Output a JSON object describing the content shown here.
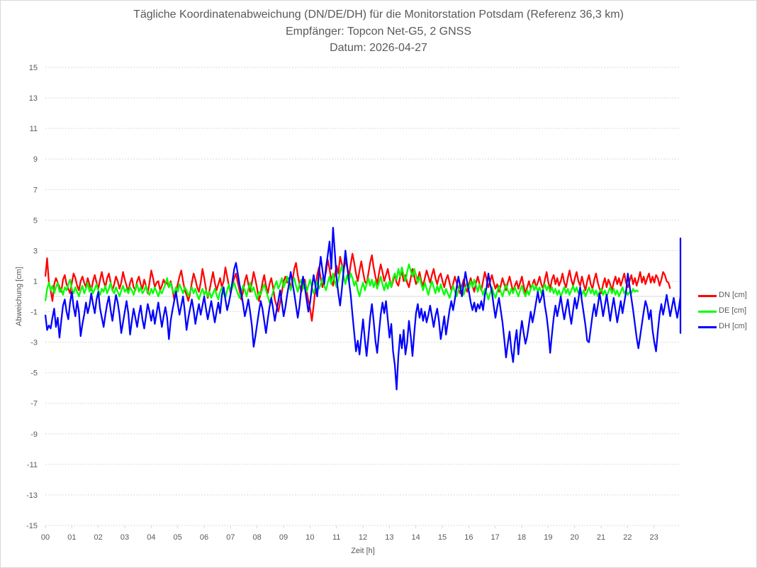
{
  "chart_data": {
    "type": "line",
    "title": "Tägliche Koordinatenabweichung (DN/DE/DH) für die Monitorstation Potsdam (Referenz 36,3 km)",
    "subtitle": "Empfänger: Topcon Net-G5, 2 GNSS",
    "date_line": "Datum: 2026-04-27",
    "xlabel": "Zeit [h]",
    "ylabel": "Abweichung [cm]",
    "xlim": [
      0,
      24
    ],
    "ylim": [
      -15,
      15
    ],
    "x_ticks": [
      "00",
      "01",
      "02",
      "03",
      "04",
      "05",
      "06",
      "07",
      "08",
      "09",
      "10",
      "11",
      "12",
      "13",
      "14",
      "15",
      "16",
      "17",
      "18",
      "19",
      "20",
      "21",
      "22",
      "23"
    ],
    "y_ticks": [
      "15",
      "13",
      "11",
      "9",
      "7",
      "5",
      "3",
      "1",
      "-1",
      "-3",
      "-5",
      "-7",
      "-9",
      "-11",
      "-13",
      "-15"
    ],
    "grid": "horizontal dotted",
    "legend_position": "right",
    "sample_interval_h": 0.0667,
    "series": [
      {
        "name": "DN [cm]",
        "color": "#ff0000",
        "values": [
          1.3,
          2.5,
          0.9,
          0.4,
          -0.3,
          0.8,
          1.2,
          0.9,
          0.6,
          0.3,
          1.1,
          1.4,
          0.8,
          0.5,
          0.2,
          0.9,
          1.5,
          1.2,
          0.7,
          0.4,
          1.0,
          1.3,
          0.9,
          0.6,
          1.2,
          0.8,
          0.4,
          1.0,
          1.4,
          0.9,
          0.5,
          1.1,
          1.6,
          1.0,
          0.6,
          1.2,
          1.5,
          0.9,
          0.4,
          0.8,
          1.3,
          1.0,
          0.5,
          0.9,
          1.6,
          1.1,
          0.7,
          0.3,
          0.9,
          1.2,
          0.6,
          0.4,
          1.0,
          1.3,
          0.8,
          0.5,
          1.1,
          0.7,
          0.2,
          0.9,
          1.7,
          1.2,
          0.6,
          0.9,
          1.0,
          0.4,
          0.7,
          1.1,
          0.8,
          0.9,
          0.6,
          1.0,
          0.5,
          -0.2,
          0.3,
          0.8,
          1.3,
          1.7,
          1.0,
          0.4,
          0.1,
          -0.3,
          0.2,
          0.9,
          1.5,
          1.1,
          0.6,
          0.3,
          0.9,
          1.8,
          1.2,
          0.5,
          -0.1,
          0.4,
          1.0,
          1.6,
          0.9,
          0.4,
          0.8,
          1.2,
          0.6,
          1.0,
          1.9,
          1.3,
          0.7,
          0.2,
          0.8,
          1.2,
          1.5,
          0.9,
          0.4,
          -0.2,
          0.3,
          1.0,
          1.4,
          0.8,
          0.3,
          0.9,
          1.6,
          1.1,
          0.5,
          -0.3,
          0.2,
          0.9,
          1.4,
          0.7,
          0.2,
          0.8,
          1.2,
          0.6,
          -0.2,
          -0.6,
          -1.0,
          -0.4,
          0.3,
          1.0,
          1.3,
          0.9,
          1.2,
          0.5,
          1.0,
          1.8,
          2.2,
          1.4,
          0.8,
          0.3,
          0.7,
          1.1,
          0.4,
          -0.3,
          -0.8,
          -1.6,
          -0.6,
          0.5,
          1.4,
          1.9,
          1.2,
          0.6,
          1.1,
          1.6,
          2.4,
          1.8,
          1.1,
          0.7,
          1.4,
          2.0,
          1.5,
          2.6,
          2.1,
          1.7,
          2.4,
          1.9,
          1.3,
          2.1,
          2.8,
          2.2,
          1.5,
          1.0,
          1.7,
          2.3,
          1.6,
          1.0,
          0.8,
          1.5,
          2.2,
          2.7,
          1.9,
          1.3,
          0.8,
          1.5,
          2.1,
          1.6,
          1.0,
          1.4,
          1.8,
          1.2,
          0.6,
          1.0,
          1.5,
          0.9,
          0.7,
          1.3,
          1.6,
          1.0,
          1.4,
          0.9,
          0.6,
          1.2,
          1.8,
          1.3,
          0.8,
          1.1,
          1.6,
          1.0,
          0.7,
          1.2,
          1.7,
          1.3,
          0.9,
          1.4,
          1.8,
          1.2,
          0.8,
          1.3,
          1.5,
          1.0,
          0.6,
          1.1,
          1.4,
          0.9,
          0.4,
          0.8,
          1.3,
          0.9,
          0.5,
          0.2,
          0.7,
          1.1,
          0.6,
          0.3,
          0.8,
          1.2,
          0.7,
          0.3,
          0.9,
          1.3,
          0.8,
          0.4,
          1.0,
          1.6,
          1.1,
          0.6,
          1.0,
          1.4,
          0.9,
          0.5,
          0.8,
          0.3,
          0.7,
          1.2,
          0.8,
          0.4,
          0.9,
          1.3,
          0.8,
          0.3,
          0.7,
          1.0,
          0.5,
          0.9,
          1.3,
          0.7,
          0.2,
          0.6,
          1.0,
          0.5,
          0.8,
          1.1,
          0.6,
          0.9,
          1.3,
          0.8,
          0.5,
          1.1,
          1.6,
          0.9,
          0.5,
          1.1,
          1.4,
          0.8,
          1.2,
          0.7,
          1.0,
          1.5,
          0.9,
          0.6,
          1.2,
          1.7,
          1.1,
          0.7,
          1.2,
          1.6,
          1.0,
          0.7,
          1.3,
          0.8,
          0.4,
          1.0,
          1.4,
          0.8,
          0.5,
          1.1,
          1.5,
          0.9,
          0.5,
          0.2,
          0.8,
          1.2,
          0.6,
          1.1,
          0.8,
          0.4,
          0.9,
          1.3,
          0.8,
          1.2,
          0.7,
          1.1,
          1.5,
          0.9,
          0.6,
          1.0,
          1.4,
          0.8,
          1.2,
          0.7,
          1.1,
          1.6,
          0.9,
          1.3,
          0.8,
          1.2,
          1.5,
          0.9,
          1.3,
          0.9,
          1.4,
          1.2,
          0.7,
          1.1,
          1.6,
          1.4,
          1.0,
          0.9,
          0.5
        ]
      },
      {
        "name": "DE [cm]",
        "color": "#00ff00",
        "values": [
          -0.3,
          0.5,
          0.9,
          0.4,
          0.7,
          0.2,
          0.6,
          0.9,
          0.3,
          0.5,
          0.1,
          0.6,
          0.4,
          0.8,
          1.1,
          0.5,
          0.2,
          0.6,
          0.3,
          0.0,
          0.4,
          0.7,
          0.2,
          0.5,
          0.9,
          0.3,
          0.6,
          0.2,
          0.5,
          0.8,
          0.4,
          0.1,
          0.5,
          0.3,
          0.7,
          0.2,
          0.5,
          0.9,
          0.4,
          0.2,
          0.6,
          0.3,
          0.0,
          0.4,
          0.7,
          0.3,
          0.5,
          0.2,
          0.6,
          0.4,
          0.1,
          0.5,
          0.8,
          0.3,
          0.6,
          0.2,
          0.4,
          0.7,
          0.3,
          0.1,
          0.5,
          0.2,
          0.6,
          0.3,
          0.0,
          0.4,
          0.2,
          0.5,
          0.8,
          1.2,
          0.6,
          0.9,
          0.4,
          0.2,
          0.6,
          0.3,
          0.8,
          0.5,
          0.2,
          0.6,
          0.4,
          0.0,
          0.3,
          0.6,
          0.2,
          0.5,
          0.1,
          -0.2,
          0.2,
          0.5,
          0.1,
          0.4,
          0.0,
          0.3,
          -0.1,
          0.2,
          0.5,
          0.1,
          -0.2,
          0.3,
          0.6,
          0.2,
          -0.1,
          0.4,
          0.8,
          0.3,
          0.6,
          0.9,
          0.5,
          0.2,
          -0.1,
          0.3,
          0.7,
          0.4,
          0.0,
          0.5,
          0.9,
          0.3,
          0.6,
          0.2,
          -0.2,
          0.3,
          0.1,
          0.5,
          0.8,
          0.4,
          0.0,
          -0.4,
          -0.1,
          0.3,
          0.7,
          1.0,
          0.5,
          0.8,
          1.2,
          0.6,
          0.9,
          1.3,
          0.8,
          0.4,
          0.9,
          1.2,
          0.7,
          0.3,
          0.8,
          1.1,
          0.5,
          0.9,
          0.3,
          0.7,
          1.1,
          0.6,
          0.2,
          0.6,
          1.0,
          0.5,
          0.8,
          1.2,
          0.7,
          0.4,
          0.9,
          1.3,
          0.8,
          1.5,
          1.0,
          0.6,
          1.1,
          1.6,
          2.0,
          1.3,
          0.8,
          1.4,
          1.0,
          1.5,
          1.2,
          0.7,
          1.0,
          0.4,
          0.0,
          0.5,
          0.9,
          0.4,
          0.8,
          1.2,
          0.7,
          1.1,
          0.6,
          1.0,
          0.5,
          0.9,
          1.3,
          0.8,
          0.4,
          0.9,
          0.5,
          1.0,
          0.6,
          1.2,
          1.5,
          1.1,
          1.8,
          1.3,
          1.9,
          1.4,
          1.0,
          1.6,
          2.1,
          1.7,
          1.3,
          1.8,
          1.4,
          0.9,
          1.3,
          0.8,
          0.4,
          0.9,
          0.5,
          0.1,
          0.6,
          1.0,
          0.6,
          0.2,
          0.7,
          0.3,
          0.8,
          0.4,
          0.1,
          0.5,
          0.2,
          -0.1,
          0.3,
          0.7,
          0.3,
          0.0,
          0.4,
          0.8,
          0.4,
          0.1,
          0.5,
          0.9,
          0.5,
          1.0,
          0.6,
          1.1,
          0.7,
          0.3,
          0.8,
          0.5,
          0.1,
          0.5,
          0.2,
          -0.2,
          0.2,
          0.6,
          0.2,
          -0.1,
          0.3,
          0.7,
          0.3,
          0.0,
          0.4,
          0.8,
          0.4,
          0.1,
          0.5,
          0.2,
          0.6,
          0.3,
          0.0,
          0.4,
          0.7,
          0.3,
          0.0,
          0.4,
          0.1,
          0.5,
          0.8,
          0.4,
          0.7,
          0.3,
          0.6,
          0.2,
          0.5,
          0.8,
          0.4,
          0.7,
          0.3,
          0.6,
          0.2,
          0.5,
          0.1,
          0.4,
          0.0,
          0.3,
          0.6,
          0.2,
          0.5,
          0.1,
          0.4,
          0.7,
          0.3,
          0.6,
          0.2,
          0.5,
          0.1,
          0.4,
          0.0,
          0.3,
          0.6,
          0.2,
          0.5,
          0.1,
          0.4,
          0.0,
          0.3,
          0.5,
          0.1,
          0.4,
          0.0,
          0.3,
          0.6,
          0.2,
          0.5,
          0.1,
          0.4,
          0.0,
          0.3,
          0.6,
          0.2,
          0.4,
          0.1,
          0.3,
          0.2,
          0.5,
          0.3,
          0.4,
          0.3
        ]
      },
      {
        "name": "DH [cm]",
        "color": "#0000ff",
        "values": [
          -1.2,
          -2.2,
          -1.9,
          -2.1,
          -1.4,
          -0.8,
          -2.0,
          -1.4,
          -2.7,
          -1.6,
          -0.6,
          -0.2,
          -1.0,
          -1.5,
          -0.4,
          0.3,
          -0.7,
          -1.3,
          -0.3,
          -1.0,
          -2.6,
          -1.8,
          -1.2,
          -0.4,
          -1.1,
          -0.6,
          0.2,
          -0.5,
          -1.1,
          -0.2,
          0.3,
          -0.8,
          -1.4,
          -2.0,
          -1.2,
          -0.5,
          0.0,
          -0.9,
          -1.6,
          -0.7,
          0.1,
          -0.4,
          -1.2,
          -2.4,
          -1.7,
          -1.0,
          -0.3,
          -1.1,
          -2.5,
          -1.6,
          -0.8,
          -1.4,
          -2.0,
          -1.2,
          -0.6,
          -1.5,
          -2.1,
          -1.3,
          -0.5,
          -1.0,
          -1.6,
          -0.9,
          -1.8,
          -1.1,
          -0.4,
          -1.2,
          -2.0,
          -1.3,
          -0.7,
          -1.4,
          -2.8,
          -1.6,
          -0.9,
          -0.3,
          0.3,
          -0.5,
          -1.2,
          -0.6,
          0.0,
          -1.0,
          -2.2,
          -1.4,
          -0.8,
          -0.2,
          -0.9,
          -1.8,
          -1.1,
          -0.5,
          -1.2,
          -0.6,
          0.0,
          -0.8,
          -1.5,
          -0.9,
          -0.3,
          -1.0,
          -1.7,
          -1.0,
          -0.4,
          -1.1,
          0.1,
          0.6,
          -0.2,
          -0.9,
          -0.4,
          0.2,
          1.0,
          1.8,
          2.2,
          1.5,
          0.8,
          0.2,
          -0.5,
          -1.3,
          -0.8,
          -0.2,
          -1.0,
          -1.9,
          -3.3,
          -2.6,
          -1.8,
          -1.0,
          -0.3,
          -0.8,
          -1.6,
          -2.4,
          -1.5,
          -0.7,
          -0.1,
          -0.8,
          -1.6,
          -0.9,
          -0.3,
          0.4,
          -0.4,
          -1.3,
          -0.7,
          0.1,
          0.8,
          1.6,
          0.9,
          0.2,
          -0.6,
          -1.4,
          -0.6,
          0.5,
          1.3,
          0.6,
          -0.2,
          -1.0,
          -0.4,
          0.6,
          1.4,
          0.7,
          0.0,
          1.5,
          2.6,
          1.7,
          0.8,
          1.9,
          2.7,
          3.6,
          1.8,
          4.5,
          2.9,
          1.2,
          0.2,
          -0.6,
          0.5,
          1.7,
          3.0,
          2.0,
          1.0,
          0.1,
          -1.2,
          -2.4,
          -3.6,
          -2.9,
          -3.8,
          -2.6,
          -1.5,
          -2.8,
          -3.9,
          -2.7,
          -1.4,
          -0.5,
          -1.6,
          -2.9,
          -3.7,
          -2.4,
          -1.2,
          -0.4,
          -1.1,
          -0.3,
          -1.5,
          -2.7,
          -1.8,
          -3.6,
          -4.5,
          -6.1,
          -3.9,
          -2.5,
          -3.4,
          -2.2,
          -3.8,
          -3.0,
          -1.6,
          -2.6,
          -3.9,
          -2.4,
          -1.1,
          -0.5,
          -1.4,
          -0.8,
          -1.6,
          -1.0,
          -1.7,
          -1.2,
          -0.6,
          -1.3,
          -2.0,
          -1.3,
          -0.8,
          -1.6,
          -2.8,
          -2.1,
          -1.3,
          -2.5,
          -1.7,
          -0.9,
          -0.3,
          -0.9,
          -0.2,
          0.6,
          1.3,
          0.7,
          0.0,
          0.8,
          1.6,
          0.9,
          0.3,
          -0.4,
          -0.9,
          -0.4,
          -1.0,
          -0.5,
          -0.8,
          -0.3,
          -0.9,
          0.1,
          0.6,
          1.5,
          0.8,
          0.3,
          -0.6,
          -1.4,
          -0.7,
          -0.1,
          -0.9,
          -1.7,
          -2.8,
          -4.0,
          -3.1,
          -2.3,
          -3.5,
          -4.3,
          -3.0,
          -2.2,
          -3.8,
          -2.5,
          -1.6,
          -2.4,
          -3.1,
          -2.6,
          -1.8,
          -1.0,
          -1.7,
          -1.1,
          -0.4,
          0.3,
          -0.4,
          -0.1,
          0.4,
          -0.6,
          -1.3,
          -2.3,
          -3.7,
          -2.5,
          -1.4,
          -0.6,
          -1.3,
          -0.7,
          0.0,
          -0.8,
          -1.5,
          -0.8,
          -0.2,
          -1.1,
          -1.8,
          -0.9,
          -0.1,
          -0.8,
          -0.2,
          0.6,
          -0.3,
          -1.1,
          -1.9,
          -2.9,
          -3.0,
          -2.1,
          -1.2,
          -0.5,
          -1.3,
          -0.6,
          0.2,
          -0.5,
          -1.3,
          -0.6,
          0.1,
          -0.7,
          -1.6,
          -0.8,
          -0.1,
          -0.9,
          -1.7,
          -1.0,
          -0.3,
          -1.1,
          -0.4,
          0.3,
          1.5,
          0.7,
          -0.1,
          -0.9,
          -1.8,
          -2.7,
          -3.4,
          -2.6,
          -1.8,
          -1.0,
          -0.3,
          -0.7,
          -1.5,
          -0.9,
          -2.2,
          -3.0,
          -3.6,
          -2.3,
          -1.2,
          -0.5,
          -1.2,
          -0.6,
          0.1,
          -0.6,
          -1.3,
          -0.7,
          -0.1,
          -0.8,
          -1.4,
          -0.7,
          0.0,
          -0.6,
          -1.3,
          -0.8,
          -0.2,
          0.4,
          -0.3,
          -0.9,
          -0.4,
          0.1,
          -0.5,
          -1.1,
          -0.6,
          0.2,
          1.0,
          2.1,
          2.9,
          1.6,
          0.5,
          -0.3,
          -0.9,
          -0.5,
          0.5,
          1.7,
          3.8,
          2.6,
          1.1,
          0.0,
          -0.6,
          0.2,
          -0.5,
          -1.3,
          -1.9,
          -1.0,
          -1.7,
          -2.4,
          -2.1,
          -1.6,
          -1.0
        ]
      }
    ]
  }
}
